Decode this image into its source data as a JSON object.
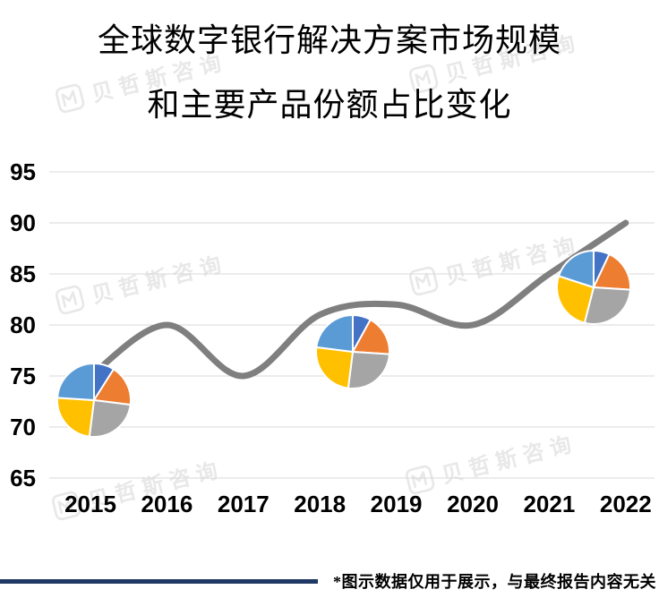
{
  "title": {
    "line1": "全球数字银行解决方案市场规模",
    "line2": "和主要产品份额占比变化"
  },
  "watermark": {
    "text": "贝哲斯咨询"
  },
  "footnote": "*图示数据仅用于展示，与最终报告内容无关",
  "colors": {
    "line": "#7F7F7F",
    "grid": "#D9D9D9",
    "footer_rule": "#1F3864",
    "text": "#000000",
    "watermark": "#E8E8E8",
    "pie_palette": [
      "#4472C4",
      "#ED7D31",
      "#A5A5A5",
      "#FFC000",
      "#5B9BD5"
    ]
  },
  "chart_data": {
    "type": "line",
    "subtype": "smooth-line-with-pie-markers",
    "x_categories": [
      "2015",
      "2016",
      "2017",
      "2018",
      "2019",
      "2020",
      "2021",
      "2022"
    ],
    "line_values": [
      75,
      80,
      75,
      81,
      82,
      80,
      85,
      90
    ],
    "y_ticks": [
      65,
      70,
      75,
      80,
      85,
      90,
      95
    ],
    "ylim": [
      65,
      95
    ],
    "grid": true,
    "legend": false,
    "pies": [
      {
        "anchor_year": "2015",
        "values": [
          9,
          18,
          25,
          24,
          24
        ]
      },
      {
        "anchor_year": "2018",
        "values": [
          8,
          18,
          26,
          25,
          23
        ]
      },
      {
        "anchor_year": "2021",
        "values": [
          7,
          19,
          28,
          26,
          20
        ]
      }
    ]
  }
}
